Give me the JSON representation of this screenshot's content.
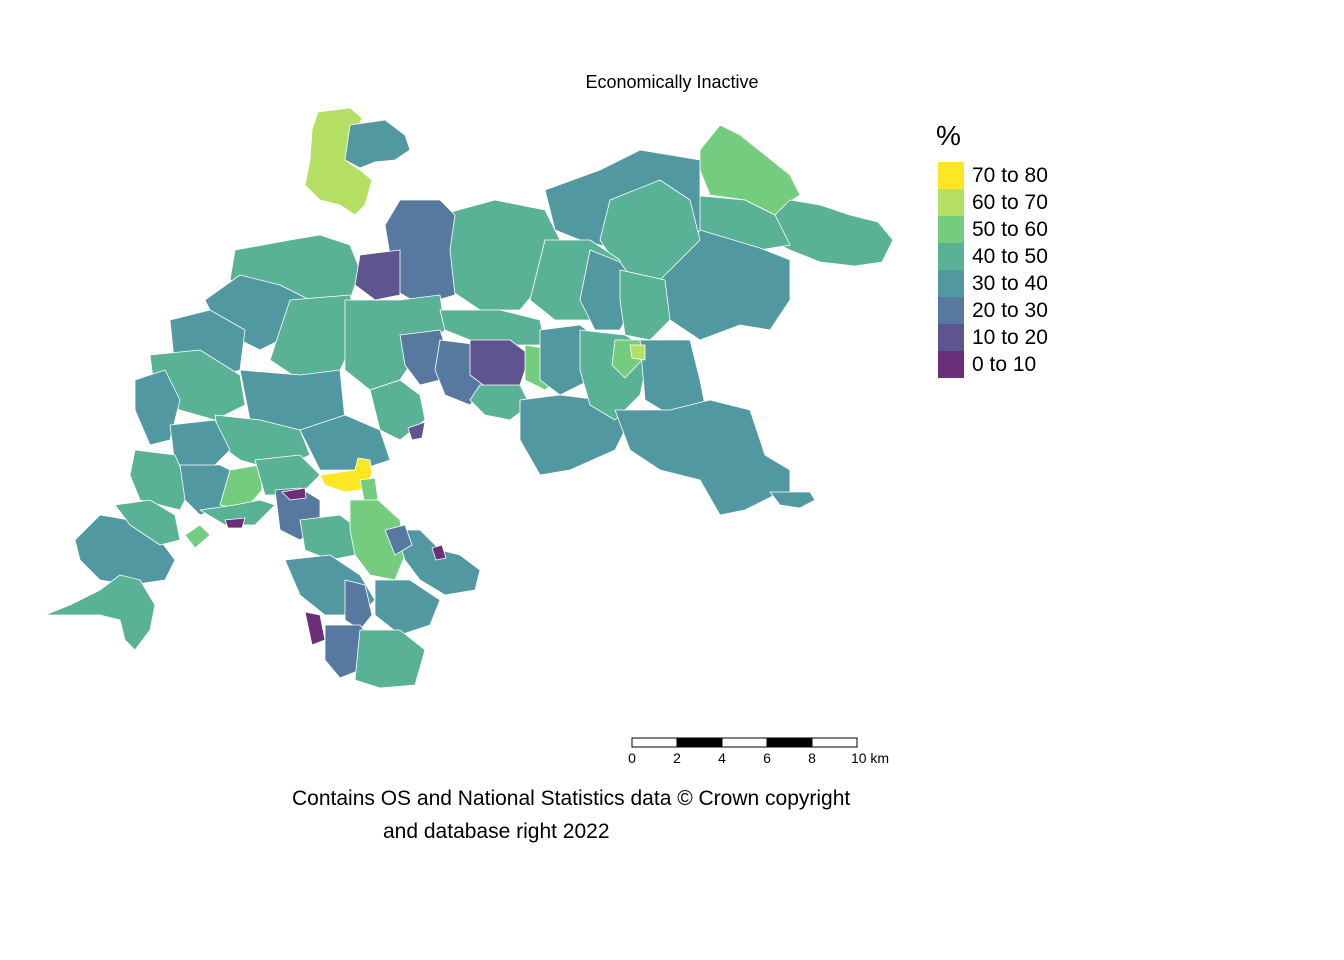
{
  "title": "Economically Inactive",
  "legend": {
    "title": "%",
    "items": [
      {
        "label": "70 to 80",
        "color": "#fde725"
      },
      {
        "label": "60 to 70",
        "color": "#b5de64"
      },
      {
        "label": "50 to 60",
        "color": "#74cd7f"
      },
      {
        "label": "40 to 50",
        "color": "#59b196"
      },
      {
        "label": "30 to 40",
        "color": "#5298a1"
      },
      {
        "label": "20 to 30",
        "color": "#5779a0"
      },
      {
        "label": "10 to 20",
        "color": "#5e5490"
      },
      {
        "label": "0 to 10",
        "color": "#6a2f79"
      }
    ]
  },
  "scale_bar": {
    "ticks": [
      "0",
      "2",
      "4",
      "6",
      "8",
      "10 km"
    ]
  },
  "attribution": {
    "line1": "Contains OS and National Statistics data © Crown copyright",
    "line2": "and database right 2022"
  }
}
